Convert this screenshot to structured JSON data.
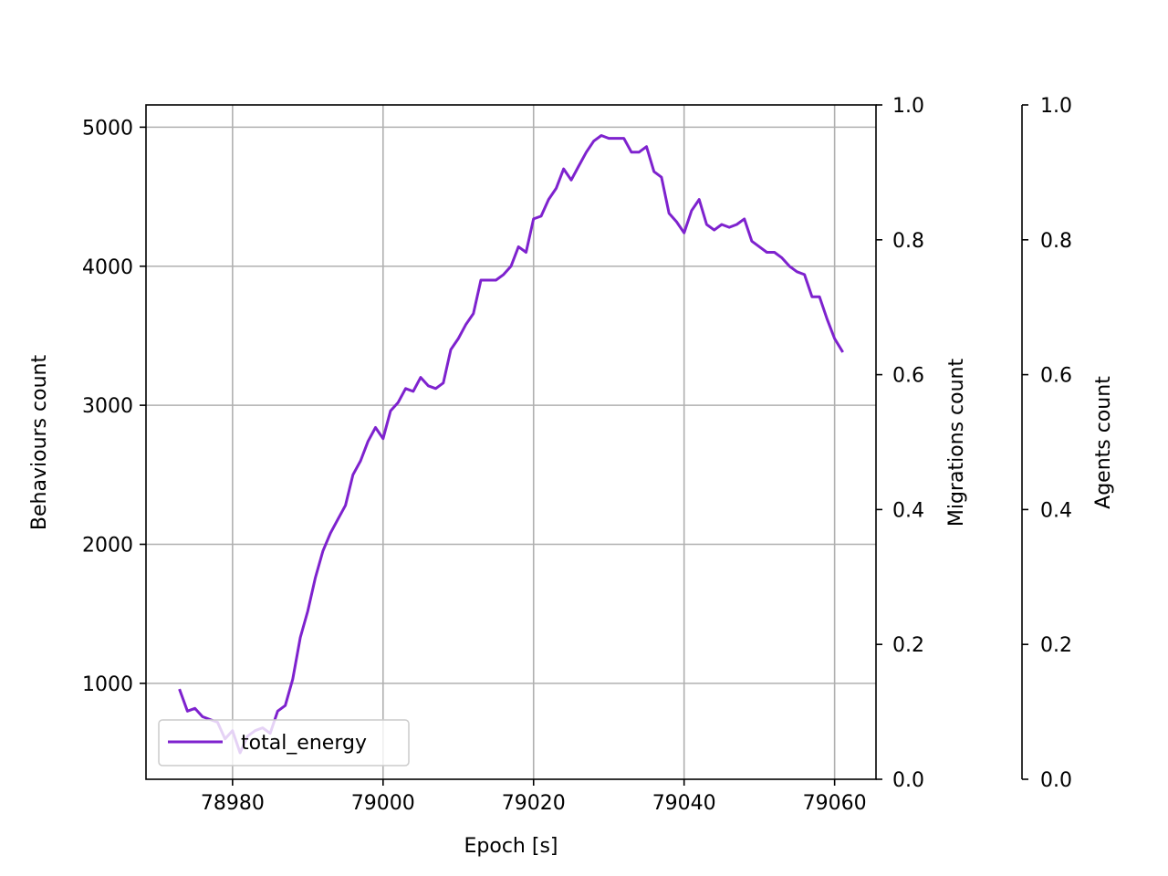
{
  "chart_data": {
    "type": "line",
    "xlabel": "Epoch [s]",
    "ylabel_left": "Behaviours count",
    "ylabel_right1": "Migrations count",
    "ylabel_right2": "Agents count",
    "xlim": [
      78968.5,
      79065.5
    ],
    "ylim_left": [
      310,
      5160
    ],
    "ylim_right": [
      0,
      1
    ],
    "x_ticks": [
      78980,
      79000,
      79020,
      79040,
      79060
    ],
    "y_ticks_left": [
      1000,
      2000,
      3000,
      4000,
      5000
    ],
    "y_ticks_right": [
      0.0,
      0.2,
      0.4,
      0.6,
      0.8,
      1.0
    ],
    "x_tick_labels": [
      "78980",
      "79000",
      "79020",
      "79040",
      "79060"
    ],
    "y_tick_labels_left": [
      "1000",
      "2000",
      "3000",
      "4000",
      "5000"
    ],
    "y_tick_labels_right": [
      "0.0",
      "0.2",
      "0.4",
      "0.6",
      "0.8",
      "1.0"
    ],
    "grid": true,
    "legend_location": "lower-left",
    "series": [
      {
        "name": "total_energy",
        "color": "#7e22ce",
        "x": [
          78973,
          78974,
          78975,
          78976,
          78977,
          78978,
          78979,
          78980,
          78981,
          78982,
          78983,
          78984,
          78985,
          78986,
          78987,
          78988,
          78989,
          78990,
          78991,
          78992,
          78993,
          78994,
          78995,
          78996,
          78997,
          78998,
          78999,
          79000,
          79001,
          79002,
          79003,
          79004,
          79005,
          79006,
          79007,
          79008,
          79009,
          79010,
          79011,
          79012,
          79013,
          79014,
          79015,
          79016,
          79017,
          79018,
          79019,
          79020,
          79021,
          79022,
          79023,
          79024,
          79025,
          79026,
          79027,
          79028,
          79029,
          79030,
          79031,
          79032,
          79033,
          79034,
          79035,
          79036,
          79037,
          79038,
          79039,
          79040,
          79041,
          79042,
          79043,
          79044,
          79045,
          79046,
          79047,
          79048,
          79049,
          79050,
          79051,
          79052,
          79053,
          79054,
          79055,
          79056,
          79057,
          79058,
          79059,
          79060,
          79061
        ],
        "y": [
          950,
          800,
          820,
          760,
          740,
          720,
          600,
          660,
          500,
          620,
          660,
          680,
          640,
          800,
          840,
          1030,
          1330,
          1520,
          1760,
          1950,
          2080,
          2180,
          2280,
          2500,
          2600,
          2740,
          2840,
          2760,
          2960,
          3020,
          3120,
          3100,
          3200,
          3140,
          3120,
          3160,
          3400,
          3480,
          3580,
          3660,
          3900,
          3900,
          3900,
          3940,
          4000,
          4140,
          4100,
          4340,
          4360,
          4480,
          4560,
          4700,
          4620,
          4720,
          4820,
          4900,
          4940,
          4920,
          4920,
          4920,
          4820,
          4820,
          4860,
          4680,
          4640,
          4380,
          4320,
          4240,
          4400,
          4480,
          4300,
          4260,
          4300,
          4280,
          4300,
          4340,
          4180,
          4140,
          4100,
          4100,
          4060,
          4000,
          3960,
          3940,
          3780,
          3780,
          3620,
          3480,
          3390
        ]
      }
    ]
  }
}
